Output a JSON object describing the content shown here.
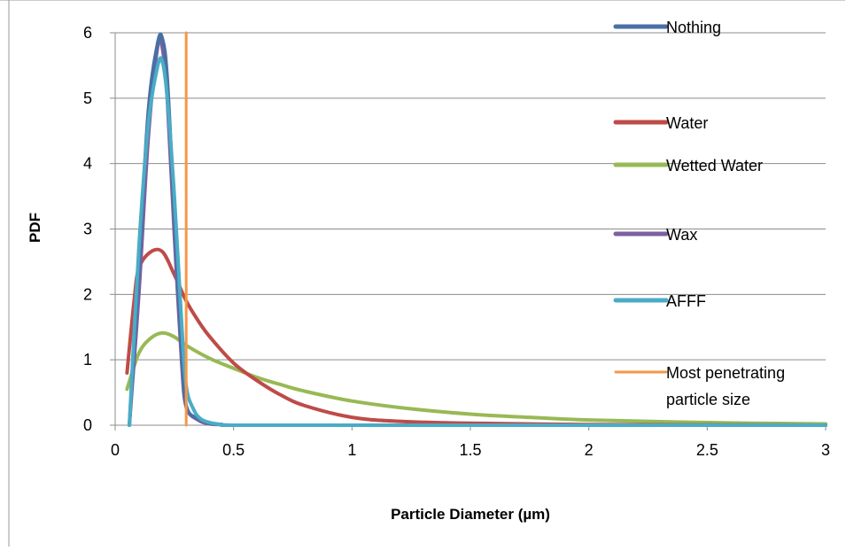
{
  "chart_data": {
    "type": "line",
    "title": "",
    "xlabel": "Particle Diameter (µm)",
    "ylabel": "PDF",
    "xlim": [
      0,
      3
    ],
    "ylim": [
      0,
      6
    ],
    "xticks": [
      0,
      0.5,
      1,
      1.5,
      2,
      2.5,
      3
    ],
    "xtick_labels": [
      "0",
      "0.5",
      "1",
      "1.5",
      "2",
      "2.5",
      "3"
    ],
    "yticks": [
      0,
      1,
      2,
      3,
      4,
      5,
      6
    ],
    "ytick_labels": [
      "0",
      "1",
      "2",
      "3",
      "4",
      "5",
      "6"
    ],
    "grid": "horizontal",
    "legend_position": "right",
    "series": [
      {
        "name": "Nothing",
        "color": "#4a6fa5",
        "x": [
          0.06,
          0.1,
          0.14,
          0.18,
          0.2,
          0.22,
          0.25,
          0.28,
          0.3,
          0.35,
          0.4,
          0.45,
          0.5,
          1,
          2,
          3
        ],
        "y": [
          0,
          2.4,
          4.8,
          5.85,
          5.9,
          5.3,
          3.2,
          1.2,
          0.3,
          0.1,
          0.03,
          0.01,
          0,
          0,
          0,
          0
        ]
      },
      {
        "name": "Water",
        "color": "#be4b48",
        "x": [
          0.05,
          0.08,
          0.1,
          0.15,
          0.2,
          0.25,
          0.3,
          0.35,
          0.4,
          0.5,
          0.6,
          0.7,
          0.8,
          1,
          1.2,
          1.5,
          2,
          2.5,
          3
        ],
        "y": [
          0.8,
          1.9,
          2.4,
          2.65,
          2.65,
          2.3,
          1.9,
          1.6,
          1.35,
          0.95,
          0.68,
          0.46,
          0.3,
          0.12,
          0.06,
          0.03,
          0.01,
          0.005,
          0
        ]
      },
      {
        "name": "Wetted Water",
        "color": "#98b954",
        "x": [
          0.05,
          0.1,
          0.15,
          0.2,
          0.25,
          0.3,
          0.4,
          0.5,
          0.6,
          0.7,
          0.8,
          1,
          1.25,
          1.5,
          1.75,
          2,
          2.5,
          3
        ],
        "y": [
          0.55,
          1.1,
          1.33,
          1.41,
          1.35,
          1.22,
          1.02,
          0.87,
          0.73,
          0.62,
          0.52,
          0.37,
          0.25,
          0.17,
          0.12,
          0.08,
          0.04,
          0.02
        ]
      },
      {
        "name": "Wax",
        "color": "#7d60a0",
        "x": [
          0.06,
          0.1,
          0.14,
          0.18,
          0.2,
          0.22,
          0.25,
          0.28,
          0.3,
          0.35,
          0.4,
          0.45,
          0.5,
          1,
          2,
          3
        ],
        "y": [
          0,
          2.0,
          4.4,
          5.8,
          5.75,
          5.0,
          2.9,
          1.0,
          0.28,
          0.08,
          0.02,
          0.01,
          0,
          0,
          0,
          0
        ]
      },
      {
        "name": "AFFF",
        "color": "#4aacc6",
        "x": [
          0.06,
          0.1,
          0.14,
          0.18,
          0.2,
          0.22,
          0.25,
          0.28,
          0.3,
          0.33,
          0.36,
          0.4,
          0.45,
          0.5,
          1,
          2,
          3
        ],
        "y": [
          0,
          2.7,
          4.6,
          5.5,
          5.55,
          5.0,
          3.5,
          1.6,
          0.6,
          0.25,
          0.1,
          0.04,
          0.01,
          0,
          0,
          0,
          0
        ]
      },
      {
        "name": "Most penetrating particle size",
        "color": "#f79646",
        "x": [
          0.3,
          0.3
        ],
        "y": [
          0,
          6
        ]
      }
    ],
    "legend_lines": [
      [
        "Nothing"
      ],
      [
        "Water"
      ],
      [
        "Wetted Water"
      ],
      [
        "Wax"
      ],
      [
        "AFFF"
      ],
      [
        "Most penetrating",
        "particle size"
      ]
    ]
  }
}
